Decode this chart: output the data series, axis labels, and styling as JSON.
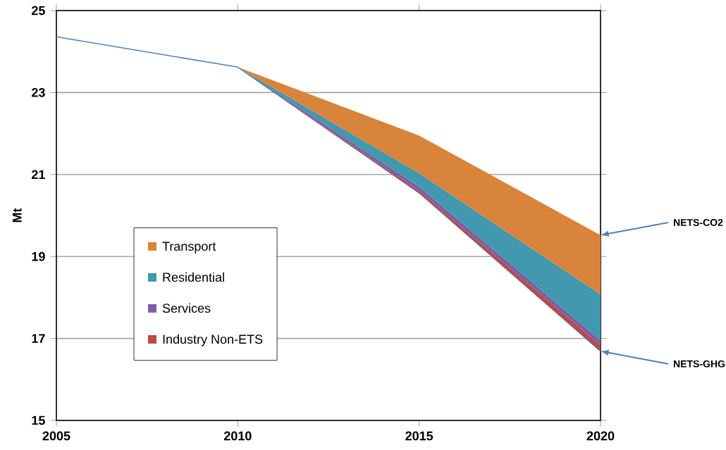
{
  "chart_data": {
    "type": "area",
    "ylabel": "Mt",
    "xlim": [
      2005,
      2020
    ],
    "xticks": [
      2005,
      2010,
      2015,
      2020
    ],
    "ylim": [
      15,
      25
    ],
    "yticks": [
      15,
      17,
      19,
      21,
      23,
      25
    ],
    "grid": "y",
    "legend": "left",
    "series": [
      {
        "type": "line",
        "color": "#4f81bd",
        "x": [
          2005,
          2010,
          2015,
          2020
        ],
        "values": [
          24.36,
          23.62,
          20.55,
          16.69
        ]
      },
      {
        "name": "Industry Non-ETS",
        "color": "#b94a48",
        "x": [
          2010,
          2015,
          2020
        ],
        "values": [
          23.62,
          20.6,
          16.84
        ]
      },
      {
        "name": "Services",
        "color": "#7b5ea7",
        "x": [
          2010,
          2015,
          2020
        ],
        "values": [
          23.62,
          20.7,
          16.95
        ]
      },
      {
        "name": "Residential",
        "color": "#4198af",
        "x": [
          2010,
          2015,
          2020
        ],
        "values": [
          23.62,
          21.03,
          18.07
        ]
      },
      {
        "name": "Transport",
        "color": "#d9843b",
        "x": [
          2010,
          2015,
          2020
        ],
        "values": [
          23.62,
          21.95,
          19.52
        ]
      }
    ],
    "annotations": [
      "NETS-CO2",
      "NETS-GHG"
    ]
  }
}
